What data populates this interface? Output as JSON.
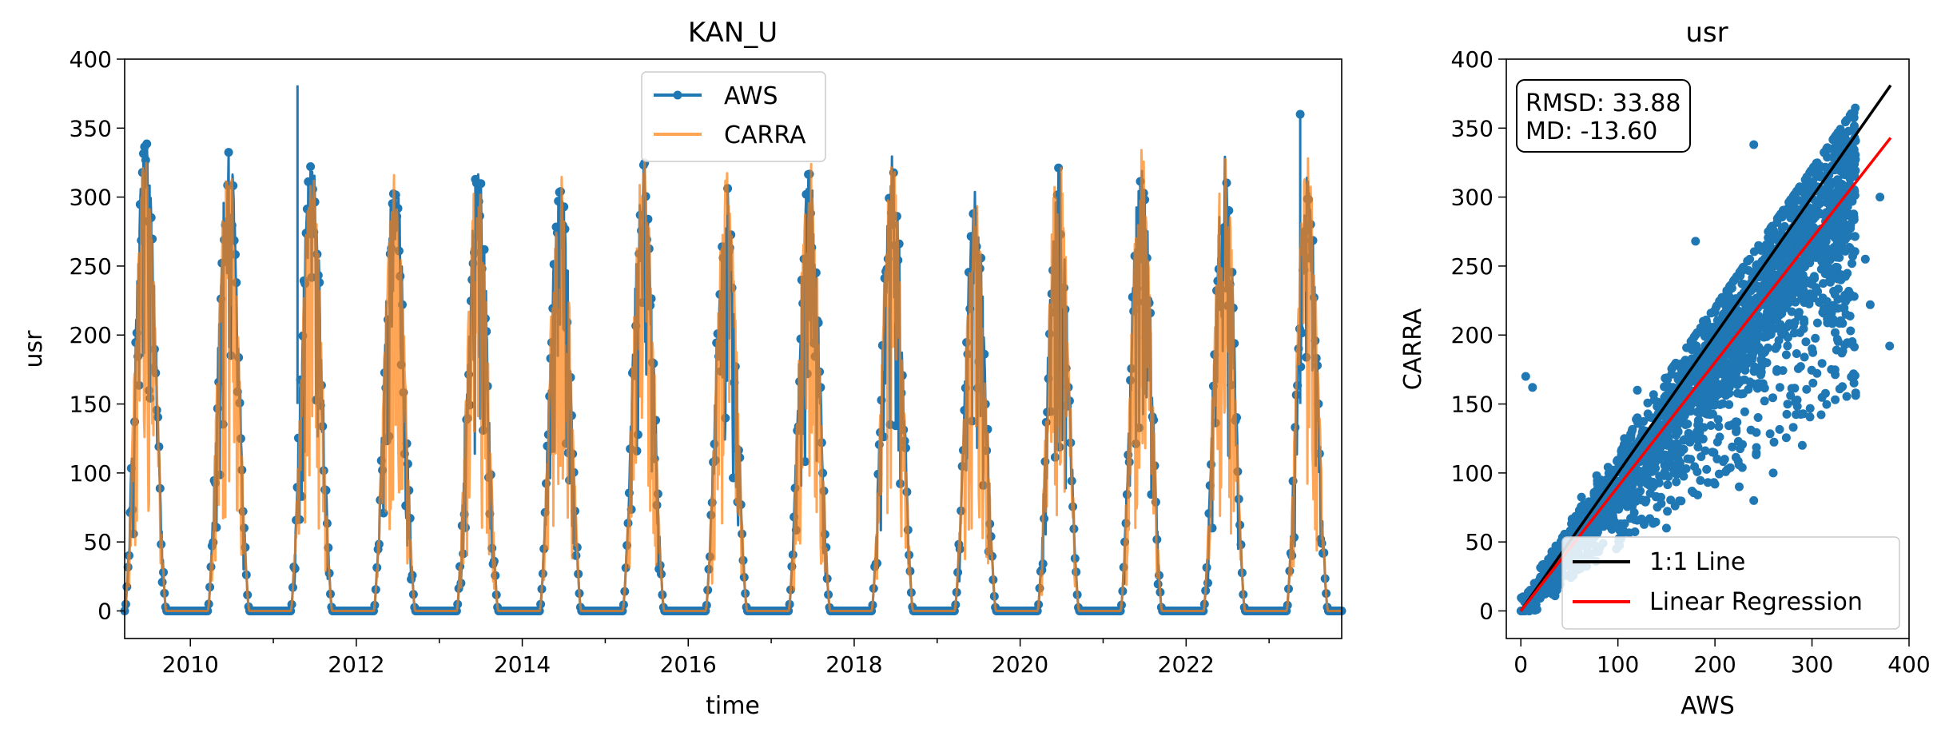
{
  "colors": {
    "aws": "#1f77b4",
    "carra": "#ff7f0e",
    "one_to_one": "#000000",
    "regression": "#ff0000"
  },
  "chart_data": [
    {
      "type": "line",
      "title": "KAN_U",
      "xlabel": "time",
      "ylabel": "usr",
      "xlim": [
        "2009-03",
        "2023-11"
      ],
      "ylim": [
        -20,
        400
      ],
      "x_ticks": [
        "2010",
        "2012",
        "2014",
        "2016",
        "2018",
        "2020",
        "2022"
      ],
      "y_ticks": [
        "0",
        "50",
        "100",
        "150",
        "200",
        "250",
        "300",
        "350",
        "400"
      ],
      "legend": {
        "position": "top-center",
        "entries": [
          "AWS",
          "CARRA"
        ]
      },
      "series": [
        {
          "name": "AWS",
          "style": "line-with-markers",
          "seasonal_peaks": [
            {
              "date": "2009-06",
              "value": 346
            },
            {
              "date": "2010-06",
              "value": 344
            },
            {
              "date": "2011-06",
              "value": 332
            },
            {
              "date": "2012-06",
              "value": 325
            },
            {
              "date": "2013-06",
              "value": 330
            },
            {
              "date": "2014-06",
              "value": 325
            },
            {
              "date": "2015-06",
              "value": 328
            },
            {
              "date": "2016-06",
              "value": 322
            },
            {
              "date": "2017-06",
              "value": 320
            },
            {
              "date": "2018-06",
              "value": 333
            },
            {
              "date": "2019-06",
              "value": 304
            },
            {
              "date": "2020-06",
              "value": 325
            },
            {
              "date": "2021-06",
              "value": 336
            },
            {
              "date": "2022-06",
              "value": 335
            },
            {
              "date": "2023-06",
              "value": 315
            }
          ],
          "notable_points": [
            {
              "date": "2011-04",
              "value": 381
            },
            {
              "date": "2023-05",
              "value": 360
            }
          ],
          "winter_minimum": 0
        },
        {
          "name": "CARRA",
          "style": "line",
          "seasonal_peaks": [
            {
              "date": "2009-06",
              "value": 340
            },
            {
              "date": "2010-06",
              "value": 335
            },
            {
              "date": "2011-06",
              "value": 325
            },
            {
              "date": "2012-06",
              "value": 320
            },
            {
              "date": "2013-06",
              "value": 325
            },
            {
              "date": "2014-06",
              "value": 330
            },
            {
              "date": "2015-06",
              "value": 332
            },
            {
              "date": "2016-06",
              "value": 320
            },
            {
              "date": "2017-06",
              "value": 330
            },
            {
              "date": "2018-06",
              "value": 330
            },
            {
              "date": "2019-06",
              "value": 300
            },
            {
              "date": "2020-06",
              "value": 335
            },
            {
              "date": "2021-06",
              "value": 338
            },
            {
              "date": "2022-06",
              "value": 340
            },
            {
              "date": "2023-06",
              "value": 335
            }
          ],
          "winter_minimum": 0
        }
      ]
    },
    {
      "type": "scatter",
      "title": "usr",
      "xlabel": "AWS",
      "ylabel": "CARRA",
      "xlim": [
        -15,
        400
      ],
      "ylim": [
        -20,
        400
      ],
      "x_ticks": [
        "0",
        "100",
        "200",
        "300",
        "400"
      ],
      "y_ticks": [
        "0",
        "50",
        "100",
        "150",
        "200",
        "250",
        "300",
        "350",
        "400"
      ],
      "stats": {
        "rmsd": "RMSD: 33.88",
        "md": "MD: -13.60"
      },
      "legend": {
        "position": "bottom-right",
        "entries": [
          "1:1 Line",
          "Linear Regression"
        ]
      },
      "lines": [
        {
          "name": "1:1 Line",
          "x": [
            0,
            381
          ],
          "y": [
            0,
            381
          ]
        },
        {
          "name": "Linear Regression",
          "x": [
            0,
            381
          ],
          "y": [
            0,
            343
          ]
        }
      ],
      "points": [
        [
          5,
          170
        ],
        [
          12,
          162
        ],
        [
          240,
          338
        ],
        [
          360,
          222
        ],
        [
          380,
          192
        ],
        [
          345,
          158
        ],
        [
          355,
          255
        ],
        [
          370,
          300
        ],
        [
          180,
          268
        ],
        [
          188,
          210
        ],
        [
          120,
          160
        ],
        [
          175,
          110
        ],
        [
          210,
          110
        ],
        [
          225,
          90
        ],
        [
          240,
          80
        ],
        [
          260,
          100
        ],
        [
          300,
          190
        ],
        [
          320,
          175
        ],
        [
          335,
          215
        ],
        [
          290,
          120
        ],
        [
          150,
          60
        ],
        [
          260,
          240
        ],
        [
          280,
          270
        ]
      ]
    }
  ]
}
